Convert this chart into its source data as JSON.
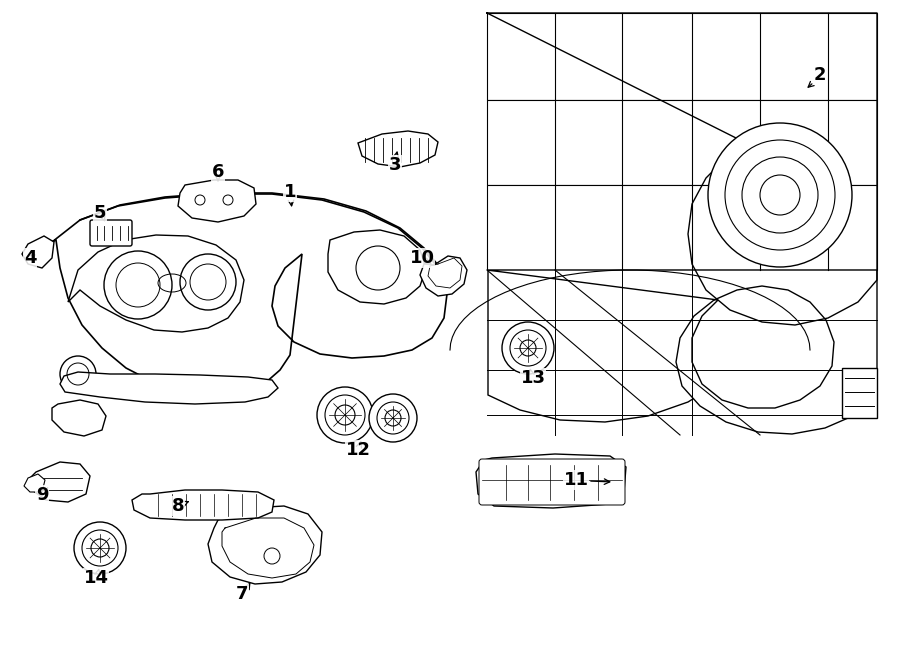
{
  "bg": "#ffffff",
  "lc": "#000000",
  "lw": 1.0,
  "fig_w": 9.0,
  "fig_h": 6.61,
  "dpi": 100
}
